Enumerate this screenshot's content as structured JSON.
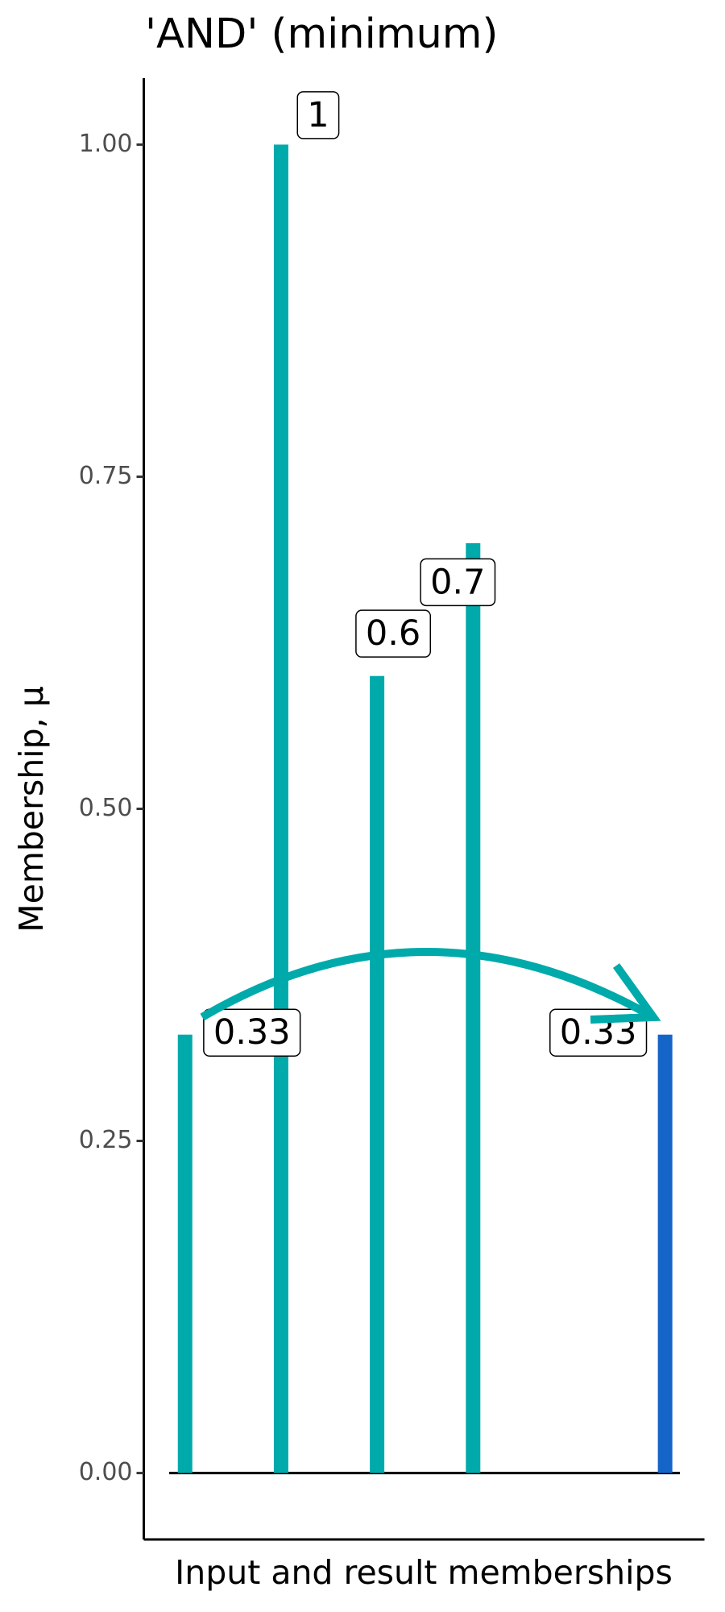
{
  "chart_data": {
    "type": "bar",
    "title": "'AND' (minimum)",
    "x_label": "Input and result memberships",
    "y_label": "Membership, μ",
    "x": [
      1,
      2,
      3,
      4,
      6
    ],
    "values": [
      0.33,
      1,
      0.6,
      0.7,
      0.33
    ],
    "colors": [
      "#00aaaa",
      "#00aaaa",
      "#00aaaa",
      "#00aaaa",
      "#1565c8"
    ],
    "xlim": [
      0.57,
      6.41
    ],
    "ylim": [
      -0.05,
      1.05
    ],
    "yticks": [
      {
        "value": 0,
        "label": "0.00"
      },
      {
        "value": 0.25,
        "label": "0.25"
      },
      {
        "value": 0.5,
        "label": "0.50"
      },
      {
        "value": 0.75,
        "label": "0.75"
      },
      {
        "value": 1,
        "label": "1.00"
      }
    ],
    "grid": false
  }
}
